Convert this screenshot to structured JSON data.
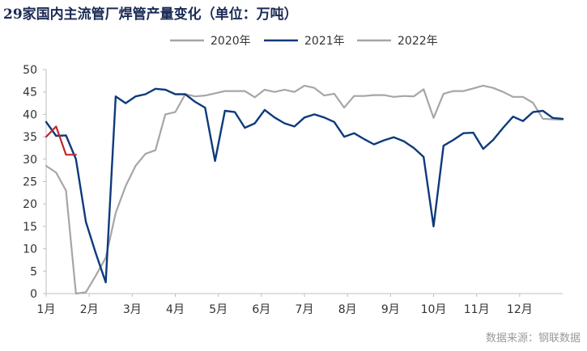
{
  "colors": {
    "2020": "#a6a6a6",
    "2021": "#0e3a7c",
    "2022": "#c0262d",
    "title": "#1b2b55",
    "axis": "#bfbfbf"
  },
  "chart_data": {
    "type": "line",
    "title": "29家国内主流管厂焊管产量变化（单位：万吨）",
    "source": "数据来源：钢联数据",
    "xlabel": "",
    "ylabel": "",
    "ylim": [
      0,
      50
    ],
    "yticks": [
      0,
      5,
      10,
      15,
      20,
      25,
      30,
      35,
      40,
      45,
      50
    ],
    "x_unit": "week",
    "xlim": [
      1,
      53
    ],
    "month_labels": [
      "1月",
      "2月",
      "3月",
      "4月",
      "5月",
      "6月",
      "7月",
      "8月",
      "9月",
      "10月",
      "11月",
      "12月"
    ],
    "legend_position": "top",
    "grid": false,
    "series": [
      {
        "name": "2020年",
        "color_key": "2020",
        "x": [
          1,
          2,
          3,
          4,
          5,
          6,
          7,
          8,
          9,
          10,
          11,
          12,
          13,
          14,
          15,
          16,
          17,
          18,
          19,
          20,
          21,
          22,
          23,
          24,
          25,
          26,
          27,
          28,
          29,
          30,
          31,
          32,
          33,
          34,
          35,
          36,
          37,
          38,
          39,
          40,
          41,
          42,
          43,
          44,
          45,
          46,
          47,
          48,
          49,
          50,
          51,
          52,
          53
        ],
        "values": [
          28.5,
          27.0,
          23.0,
          0.0,
          0.3,
          4.0,
          8.0,
          18.0,
          24.0,
          28.5,
          31.2,
          32.0,
          40.0,
          40.5,
          44.5,
          44.0,
          44.2,
          44.7,
          45.2,
          45.2,
          45.2,
          43.8,
          45.5,
          45.0,
          45.5,
          45.0,
          46.4,
          45.9,
          44.2,
          44.6,
          41.5,
          44.1,
          44.1,
          44.3,
          44.3,
          43.9,
          44.1,
          44.0,
          45.6,
          39.2,
          44.6,
          45.2,
          45.2,
          45.8,
          46.4,
          45.9,
          45.0,
          43.9,
          43.9,
          42.6,
          39.0,
          38.9,
          38.8
        ]
      },
      {
        "name": "2021年",
        "color_key": "2021",
        "x": [
          1,
          2,
          3,
          4,
          5,
          6,
          7,
          8,
          9,
          10,
          11,
          12,
          13,
          14,
          15,
          16,
          17,
          18,
          19,
          20,
          21,
          22,
          23,
          24,
          25,
          26,
          27,
          28,
          29,
          30,
          31,
          32,
          33,
          34,
          35,
          36,
          37,
          38,
          39,
          40,
          41,
          42,
          43,
          44,
          45,
          46,
          47,
          48,
          49,
          50,
          51,
          52,
          53
        ],
        "values": [
          38.3,
          35.2,
          35.3,
          30.0,
          16.0,
          9.0,
          2.5,
          44.0,
          42.5,
          44.0,
          44.5,
          45.7,
          45.5,
          44.5,
          44.5,
          42.8,
          41.5,
          29.6,
          40.8,
          40.5,
          37.0,
          38.0,
          41.0,
          39.3,
          38.0,
          37.3,
          39.3,
          40.0,
          39.3,
          38.3,
          35.0,
          35.8,
          34.5,
          33.3,
          34.2,
          34.9,
          34.0,
          32.5,
          30.5,
          15.0,
          33.0,
          34.3,
          35.8,
          35.9,
          32.3,
          34.3,
          37.0,
          39.5,
          38.5,
          40.5,
          40.8,
          39.2,
          39.0
        ]
      },
      {
        "name": "2022年",
        "color_key": "2022",
        "x": [
          1,
          2,
          3,
          4
        ],
        "values": [
          35.0,
          37.3,
          31.0,
          31.0
        ]
      }
    ]
  }
}
